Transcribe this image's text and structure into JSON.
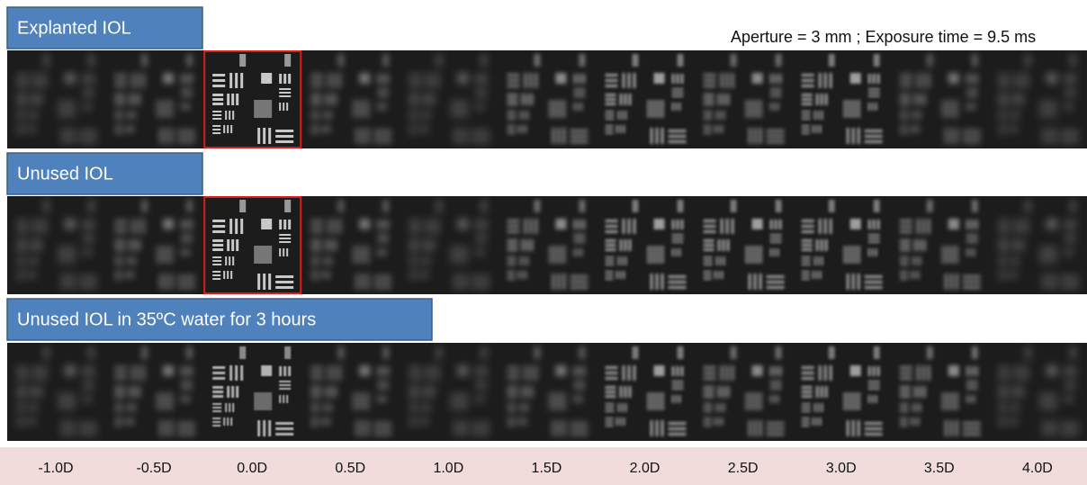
{
  "header": {
    "note": "Aperture = 3 mm ; Exposure time = 9.5 ms"
  },
  "rows": [
    {
      "label": "Explanted IOL"
    },
    {
      "label": "Unused IOL"
    },
    {
      "label": "Unused IOL in 35ºC water for 3 hours"
    }
  ],
  "columns": [
    "-1.0D",
    "-0.5D",
    "0.0D",
    "0.5D",
    "1.0D",
    "1.5D",
    "2.0D",
    "2.5D",
    "3.0D",
    "3.5D",
    "4.0D"
  ]
}
